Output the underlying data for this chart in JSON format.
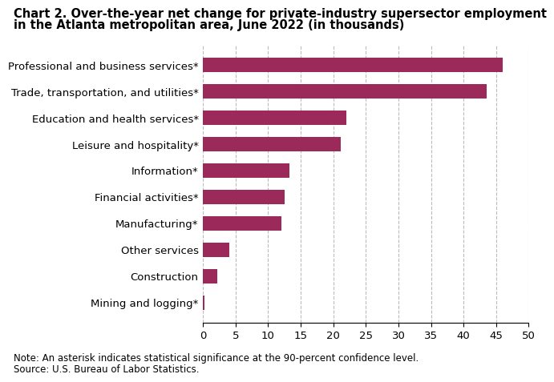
{
  "title_line1": "Chart 2. Over-the-year net change for private-industry supersector employment",
  "title_line2": "in the Atlanta metropolitan area, June 2022 (in thousands)",
  "categories": [
    "Mining and logging*",
    "Construction",
    "Other services",
    "Manufacturing*",
    "Financial activities*",
    "Information*",
    "Leisure and hospitality*",
    "Education and health services*",
    "Trade, transportation, and utilities*",
    "Professional and business services*"
  ],
  "values": [
    0.2,
    2.2,
    4.0,
    12.0,
    12.5,
    13.3,
    21.1,
    22.0,
    43.5,
    46.0
  ],
  "bar_color": "#9B2A5A",
  "xlim": [
    0,
    50
  ],
  "xticks": [
    0,
    5,
    10,
    15,
    20,
    25,
    30,
    35,
    40,
    45,
    50
  ],
  "note": "Note: An asterisk indicates statistical significance at the 90-percent confidence level.",
  "source": "Source: U.S. Bureau of Labor Statistics.",
  "background_color": "#ffffff",
  "title_fontsize": 10.5,
  "tick_fontsize": 9.5,
  "note_fontsize": 8.5
}
